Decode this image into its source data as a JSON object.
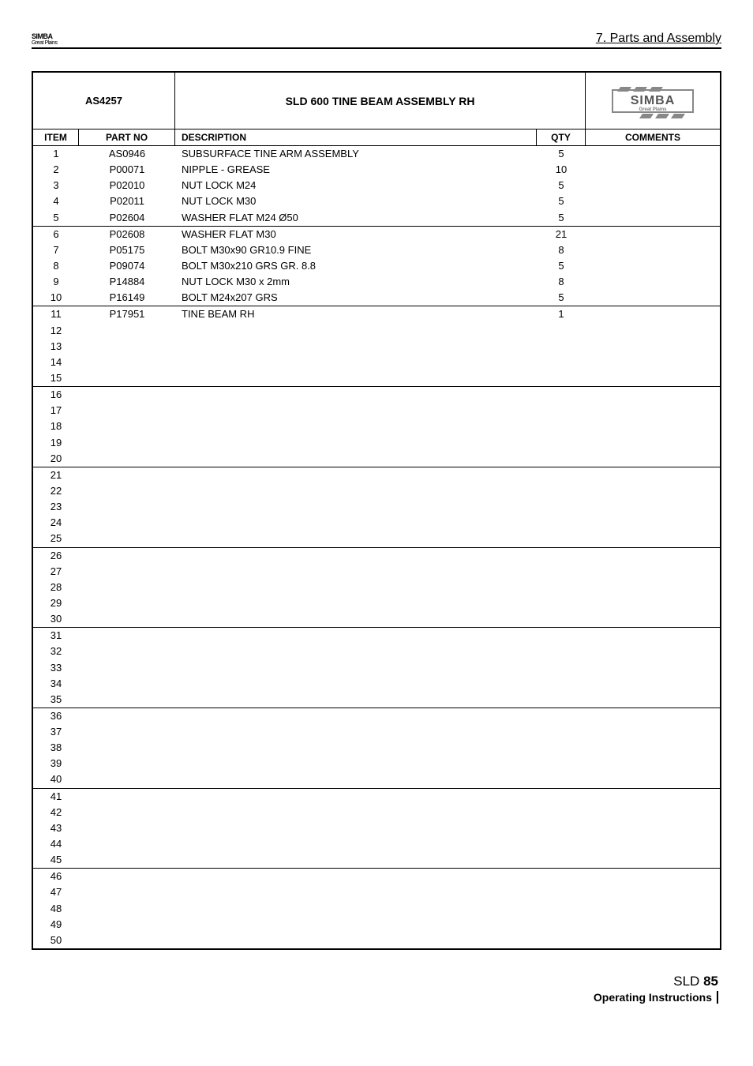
{
  "header": {
    "logo_line1": "SIMBA",
    "logo_line2": "Great Plains",
    "section_title": "7. Parts and Assembly"
  },
  "table": {
    "assembly_code": "AS4257",
    "assembly_title": "SLD 600 TINE BEAM ASSEMBLY RH",
    "brand_line1": "SIMBA",
    "brand_line2": "Great Plains",
    "columns": {
      "item": "ITEM",
      "part_no": "PART NO",
      "description": "DESCRIPTION",
      "qty": "QTY",
      "comments": "COMMENTS"
    },
    "blocks": [
      [
        {
          "item": "1",
          "part": "AS0946",
          "desc": "SUBSURFACE TINE ARM ASSEMBLY",
          "qty": "5"
        },
        {
          "item": "2",
          "part": "P00071",
          "desc": "NIPPLE - GREASE",
          "qty": "10"
        },
        {
          "item": "3",
          "part": "P02010",
          "desc": "NUT LOCK M24",
          "qty": "5"
        },
        {
          "item": "4",
          "part": "P02011",
          "desc": "NUT LOCK M30",
          "qty": "5"
        },
        {
          "item": "5",
          "part": "P02604",
          "desc": "WASHER FLAT M24 Ø50",
          "qty": "5"
        }
      ],
      [
        {
          "item": "6",
          "part": "P02608",
          "desc": "WASHER FLAT M30",
          "qty": "21"
        },
        {
          "item": "7",
          "part": "P05175",
          "desc": "BOLT M30x90 GR10.9 FINE",
          "qty": "8"
        },
        {
          "item": "8",
          "part": "P09074",
          "desc": "BOLT M30x210 GRS GR. 8.8",
          "qty": "5"
        },
        {
          "item": "9",
          "part": "P14884",
          "desc": "NUT LOCK M30 x 2mm",
          "qty": "8"
        },
        {
          "item": "10",
          "part": "P16149",
          "desc": "BOLT M24x207 GRS",
          "qty": "5"
        }
      ],
      [
        {
          "item": "11",
          "part": "P17951",
          "desc": "TINE BEAM RH",
          "qty": "1"
        },
        {
          "item": "12",
          "part": "",
          "desc": "",
          "qty": ""
        },
        {
          "item": "13",
          "part": "",
          "desc": "",
          "qty": ""
        },
        {
          "item": "14",
          "part": "",
          "desc": "",
          "qty": ""
        },
        {
          "item": "15",
          "part": "",
          "desc": "",
          "qty": ""
        }
      ],
      [
        {
          "item": "16",
          "part": "",
          "desc": "",
          "qty": ""
        },
        {
          "item": "17",
          "part": "",
          "desc": "",
          "qty": ""
        },
        {
          "item": "18",
          "part": "",
          "desc": "",
          "qty": ""
        },
        {
          "item": "19",
          "part": "",
          "desc": "",
          "qty": ""
        },
        {
          "item": "20",
          "part": "",
          "desc": "",
          "qty": ""
        }
      ],
      [
        {
          "item": "21",
          "part": "",
          "desc": "",
          "qty": ""
        },
        {
          "item": "22",
          "part": "",
          "desc": "",
          "qty": ""
        },
        {
          "item": "23",
          "part": "",
          "desc": "",
          "qty": ""
        },
        {
          "item": "24",
          "part": "",
          "desc": "",
          "qty": ""
        },
        {
          "item": "25",
          "part": "",
          "desc": "",
          "qty": ""
        }
      ],
      [
        {
          "item": "26",
          "part": "",
          "desc": "",
          "qty": ""
        },
        {
          "item": "27",
          "part": "",
          "desc": "",
          "qty": ""
        },
        {
          "item": "28",
          "part": "",
          "desc": "",
          "qty": ""
        },
        {
          "item": "29",
          "part": "",
          "desc": "",
          "qty": ""
        },
        {
          "item": "30",
          "part": "",
          "desc": "",
          "qty": ""
        }
      ],
      [
        {
          "item": "31",
          "part": "",
          "desc": "",
          "qty": ""
        },
        {
          "item": "32",
          "part": "",
          "desc": "",
          "qty": ""
        },
        {
          "item": "33",
          "part": "",
          "desc": "",
          "qty": ""
        },
        {
          "item": "34",
          "part": "",
          "desc": "",
          "qty": ""
        },
        {
          "item": "35",
          "part": "",
          "desc": "",
          "qty": ""
        }
      ],
      [
        {
          "item": "36",
          "part": "",
          "desc": "",
          "qty": ""
        },
        {
          "item": "37",
          "part": "",
          "desc": "",
          "qty": ""
        },
        {
          "item": "38",
          "part": "",
          "desc": "",
          "qty": ""
        },
        {
          "item": "39",
          "part": "",
          "desc": "",
          "qty": ""
        },
        {
          "item": "40",
          "part": "",
          "desc": "",
          "qty": ""
        }
      ],
      [
        {
          "item": "41",
          "part": "",
          "desc": "",
          "qty": ""
        },
        {
          "item": "42",
          "part": "",
          "desc": "",
          "qty": ""
        },
        {
          "item": "43",
          "part": "",
          "desc": "",
          "qty": ""
        },
        {
          "item": "44",
          "part": "",
          "desc": "",
          "qty": ""
        },
        {
          "item": "45",
          "part": "",
          "desc": "",
          "qty": ""
        }
      ],
      [
        {
          "item": "46",
          "part": "",
          "desc": "",
          "qty": ""
        },
        {
          "item": "47",
          "part": "",
          "desc": "",
          "qty": ""
        },
        {
          "item": "48",
          "part": "",
          "desc": "",
          "qty": ""
        },
        {
          "item": "49",
          "part": "",
          "desc": "",
          "qty": ""
        },
        {
          "item": "50",
          "part": "",
          "desc": "",
          "qty": ""
        }
      ]
    ]
  },
  "footer": {
    "model": "SLD",
    "page_number": "85",
    "subtitle": "Operating Instructions"
  }
}
